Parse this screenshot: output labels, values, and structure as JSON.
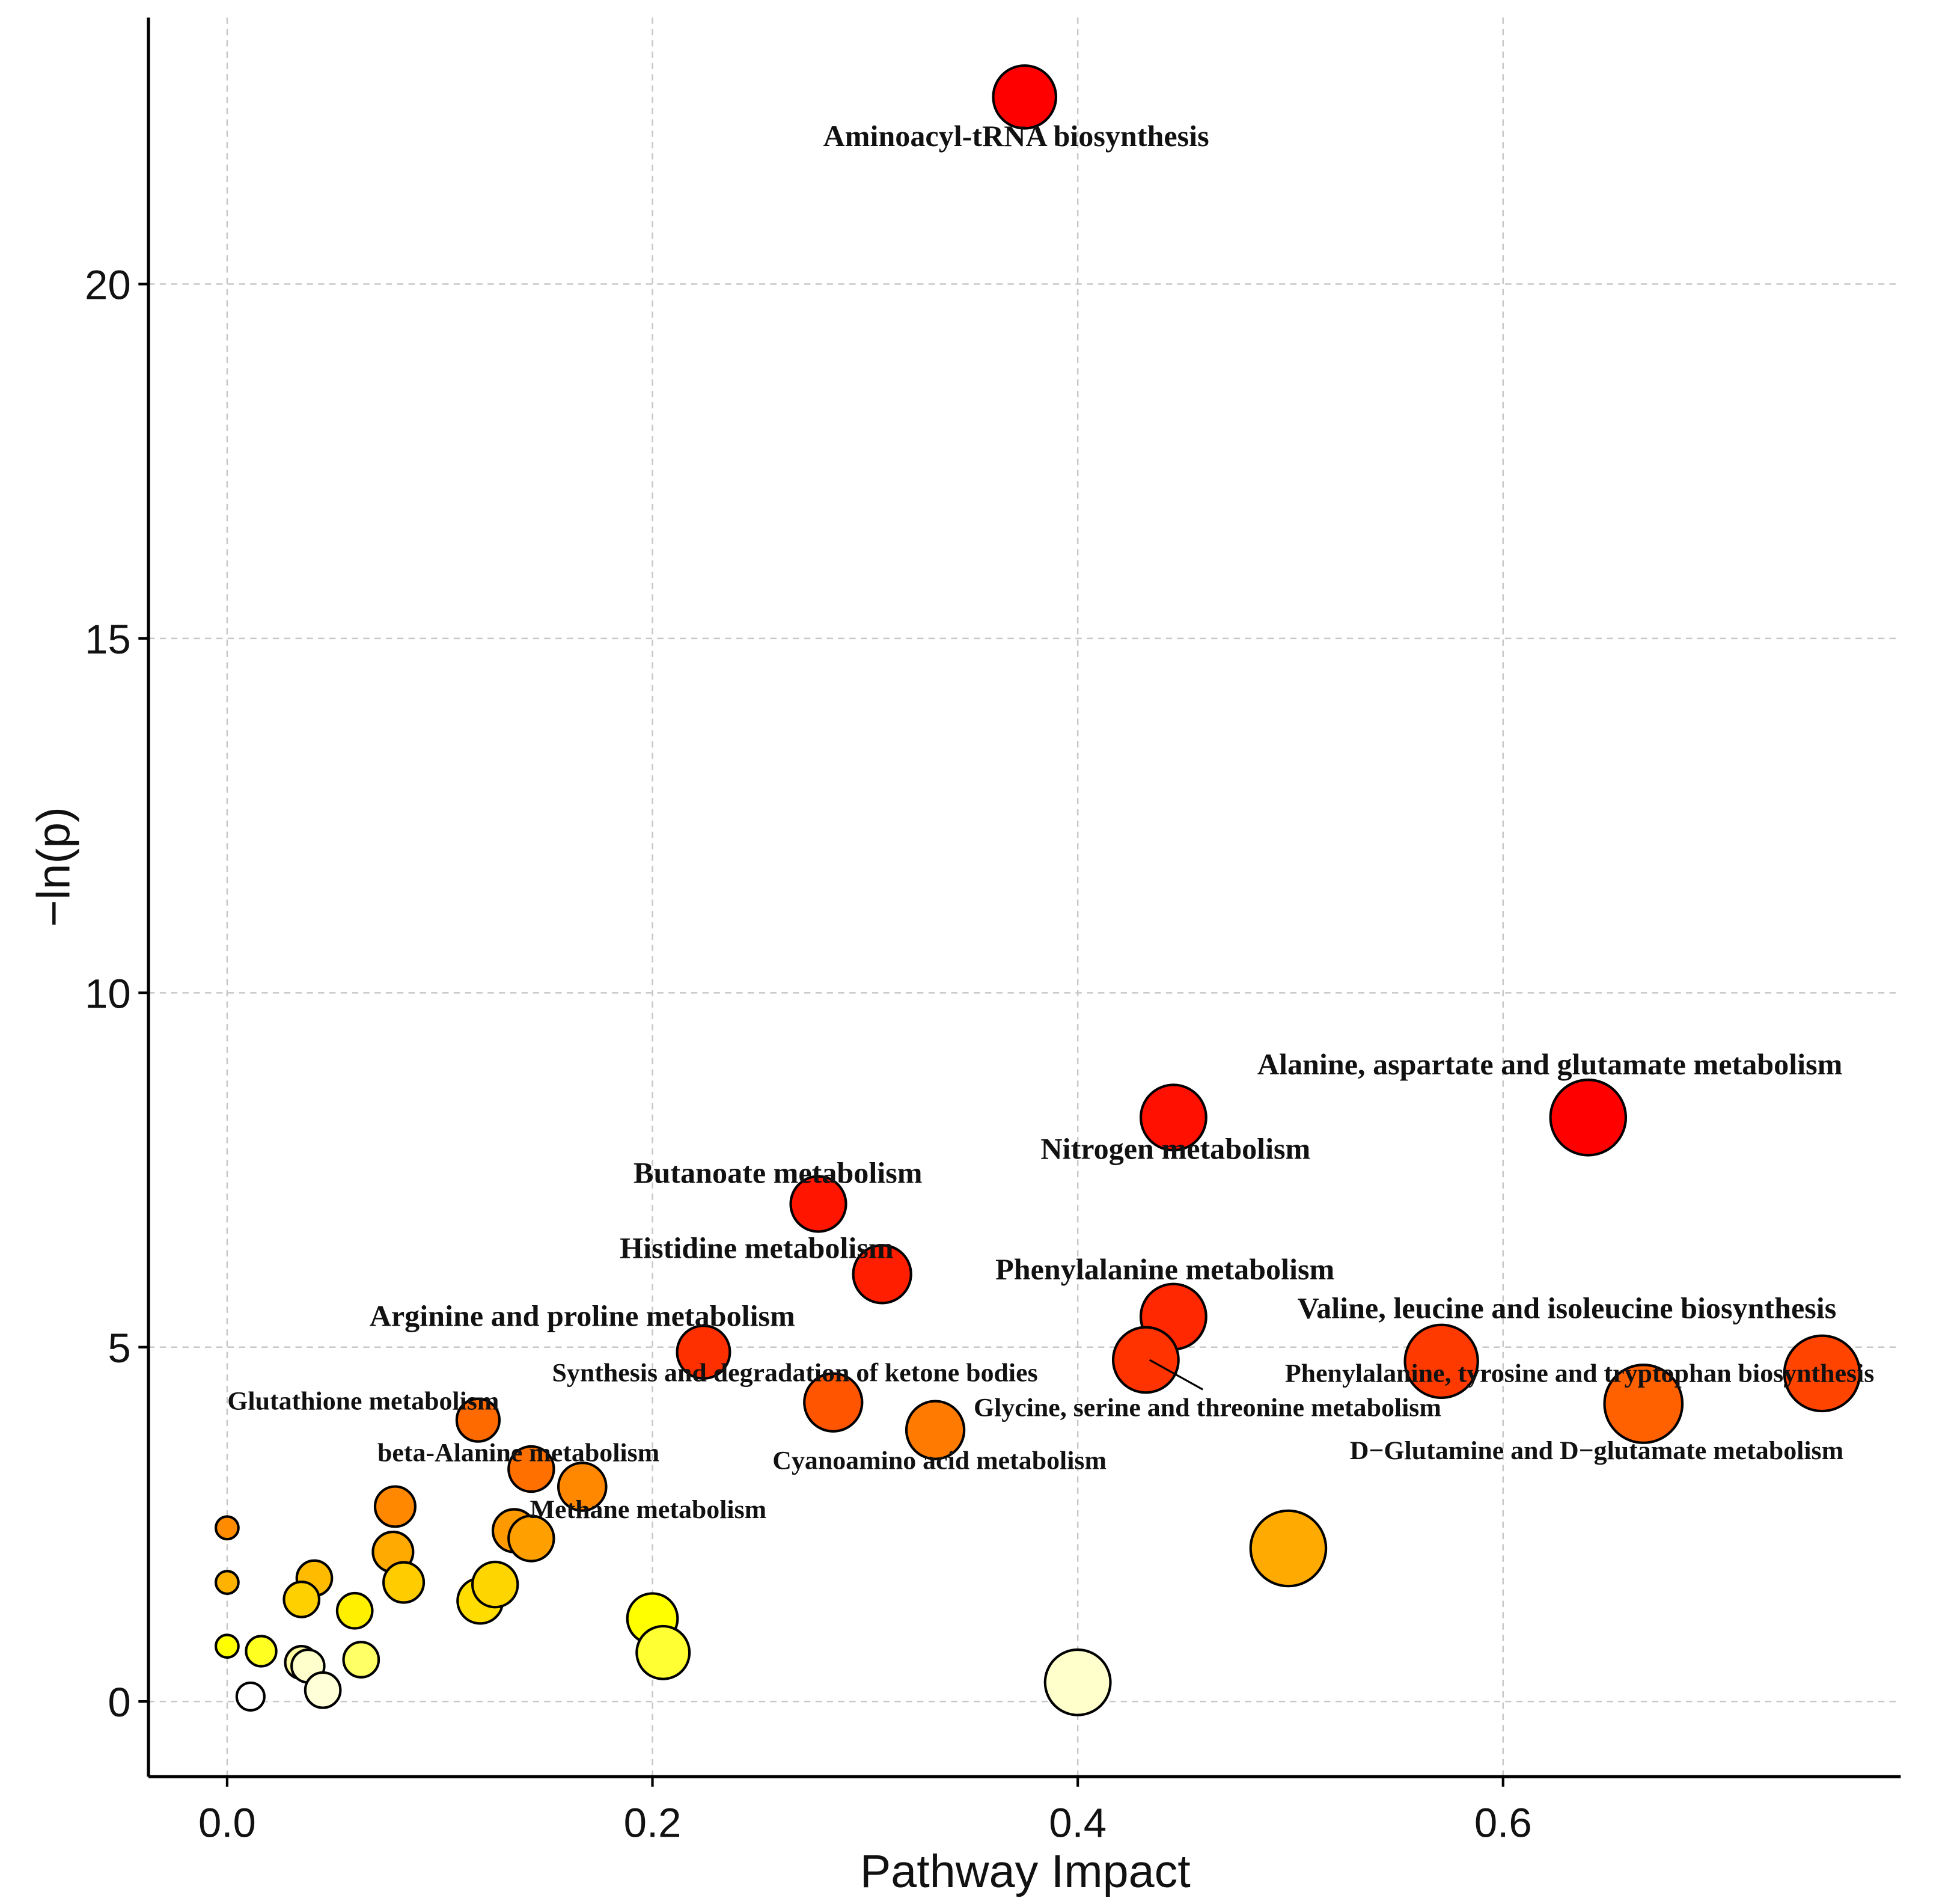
{
  "chart_data": {
    "type": "scatter",
    "title": "",
    "xlabel": "Pathway Impact",
    "ylabel": "−ln(p)",
    "xlim": [
      -0.037,
      0.787
    ],
    "ylim": [
      -1.06,
      23.76
    ],
    "xticks": [
      0.0,
      0.2,
      0.4,
      0.6
    ],
    "xtick_labels": [
      "0.0",
      "0.2",
      "0.4",
      "0.6"
    ],
    "yticks": [
      0,
      5,
      10,
      15,
      20
    ],
    "ytick_labels": [
      "0",
      "5",
      "10",
      "15",
      "20"
    ],
    "grid": true,
    "legend": "none",
    "points": [
      {
        "x": 0.375,
        "y": 22.64,
        "size": 25,
        "color": "#ff0000"
      },
      {
        "x": 0.64,
        "y": 8.24,
        "size": 30,
        "color": "#ff0000"
      },
      {
        "x": 0.445,
        "y": 8.24,
        "size": 26,
        "color": "#ff1000"
      },
      {
        "x": 0.278,
        "y": 7.02,
        "size": 22,
        "color": "#ff1500"
      },
      {
        "x": 0.308,
        "y": 6.03,
        "size": 23,
        "color": "#ff1e00"
      },
      {
        "x": 0.445,
        "y": 5.43,
        "size": 26,
        "color": "#ff2800"
      },
      {
        "x": 0.224,
        "y": 4.93,
        "size": 21,
        "color": "#ff3000"
      },
      {
        "x": 0.571,
        "y": 4.8,
        "size": 29,
        "color": "#ff3a00"
      },
      {
        "x": 0.75,
        "y": 4.63,
        "size": 30,
        "color": "#ff4400"
      },
      {
        "x": 0.432,
        "y": 4.82,
        "size": 26,
        "color": "#ff3300"
      },
      {
        "x": 0.285,
        "y": 4.22,
        "size": 23,
        "color": "#ff5500"
      },
      {
        "x": 0.666,
        "y": 4.2,
        "size": 31,
        "color": "#ff6000"
      },
      {
        "x": 0.333,
        "y": 3.83,
        "size": 23,
        "color": "#ff7a00"
      },
      {
        "x": 0.118,
        "y": 3.97,
        "size": 17,
        "color": "#ff6a00"
      },
      {
        "x": 0.143,
        "y": 3.28,
        "size": 18,
        "color": "#ff7000"
      },
      {
        "x": 0.167,
        "y": 3.03,
        "size": 19,
        "color": "#ff8800"
      },
      {
        "x": 0.079,
        "y": 2.75,
        "size": 16,
        "color": "#ff8800"
      },
      {
        "x": 0.0,
        "y": 2.45,
        "size": 9,
        "color": "#ff8c00"
      },
      {
        "x": 0.135,
        "y": 2.41,
        "size": 17,
        "color": "#ff9900"
      },
      {
        "x": 0.143,
        "y": 2.3,
        "size": 18,
        "color": "#ffa000"
      },
      {
        "x": 0.499,
        "y": 2.16,
        "size": 30,
        "color": "#ffaa00"
      },
      {
        "x": 0.078,
        "y": 2.11,
        "size": 16,
        "color": "#ffaa00"
      },
      {
        "x": 0.0,
        "y": 1.68,
        "size": 9,
        "color": "#ffb300"
      },
      {
        "x": 0.041,
        "y": 1.74,
        "size": 14,
        "color": "#ffbb00"
      },
      {
        "x": 0.083,
        "y": 1.68,
        "size": 16,
        "color": "#ffcc00"
      },
      {
        "x": 0.035,
        "y": 1.44,
        "size": 14,
        "color": "#ffd000"
      },
      {
        "x": 0.119,
        "y": 1.42,
        "size": 18,
        "color": "#ffdd00"
      },
      {
        "x": 0.126,
        "y": 1.65,
        "size": 18,
        "color": "#ffd500"
      },
      {
        "x": 0.06,
        "y": 1.28,
        "size": 14,
        "color": "#fff000"
      },
      {
        "x": 0.2,
        "y": 1.17,
        "size": 20,
        "color": "#ffff00"
      },
      {
        "x": 0.205,
        "y": 0.69,
        "size": 21,
        "color": "#ffff33"
      },
      {
        "x": 0.0,
        "y": 0.78,
        "size": 9,
        "color": "#ffff00"
      },
      {
        "x": 0.016,
        "y": 0.71,
        "size": 12,
        "color": "#ffff22"
      },
      {
        "x": 0.035,
        "y": 0.55,
        "size": 13,
        "color": "#fffaa0"
      },
      {
        "x": 0.038,
        "y": 0.5,
        "size": 13,
        "color": "#ffffcc"
      },
      {
        "x": 0.063,
        "y": 0.59,
        "size": 14,
        "color": "#ffff66"
      },
      {
        "x": 0.045,
        "y": 0.16,
        "size": 14,
        "color": "#ffffd8"
      },
      {
        "x": 0.011,
        "y": 0.07,
        "size": 11,
        "color": "#ffffff"
      },
      {
        "x": 0.4,
        "y": 0.27,
        "size": 26,
        "color": "#ffffcc"
      }
    ],
    "labels": [
      {
        "text": "Aminoacyl-tRNA biosynthesis",
        "x": 0.371,
        "y": 22.09,
        "small": false
      },
      {
        "text": "Alanine, aspartate and glutamate metabolism",
        "x": 0.622,
        "y": 8.99,
        "small": false
      },
      {
        "text": "Nitrogen metabolism",
        "x": 0.446,
        "y": 7.8,
        "small": false
      },
      {
        "text": "Butanoate metabolism",
        "x": 0.259,
        "y": 7.46,
        "small": false
      },
      {
        "text": "Histidine metabolism",
        "x": 0.249,
        "y": 6.4,
        "small": false
      },
      {
        "text": "Phenylalanine metabolism",
        "x": 0.441,
        "y": 6.1,
        "small": false
      },
      {
        "text": "Valine, leucine and isoleucine biosynthesis",
        "x": 0.63,
        "y": 5.55,
        "small": false
      },
      {
        "text": "Arginine and proline metabolism",
        "x": 0.167,
        "y": 5.44,
        "small": false
      },
      {
        "text": "Synthesis and degradation of ketone bodies",
        "x": 0.267,
        "y": 4.66,
        "small": true
      },
      {
        "text": "Phenylalanine, tyrosine and tryptophan biosynthesis",
        "x": 0.636,
        "y": 4.65,
        "small": true,
        "leader_from": 9
      },
      {
        "text": "Glutathione metabolism",
        "x": 0.064,
        "y": 4.26,
        "small": true
      },
      {
        "text": "Glycine, serine and threonine metabolism",
        "x": 0.461,
        "y": 4.17,
        "small": true
      },
      {
        "text": "beta-Alanine metabolism",
        "x": 0.137,
        "y": 3.53,
        "small": true
      },
      {
        "text": "Cyanoamino acid metabolism",
        "x": 0.335,
        "y": 3.42,
        "small": true
      },
      {
        "text": "D−Glutamine and D−glutamate metabolism",
        "x": 0.644,
        "y": 3.56,
        "small": true
      },
      {
        "text": "Methane metabolism",
        "x": 0.198,
        "y": 2.73,
        "small": true
      }
    ]
  }
}
